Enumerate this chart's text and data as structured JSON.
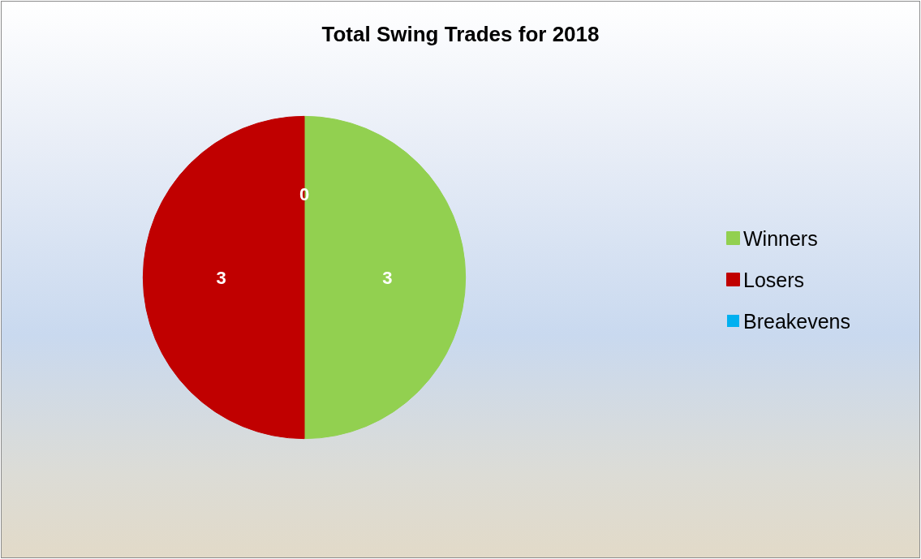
{
  "chart_data": {
    "type": "pie",
    "title": "Total Swing Trades for 2018",
    "categories": [
      "Winners",
      "Losers",
      "Breakevens"
    ],
    "values": [
      3,
      3,
      0
    ],
    "colors": [
      "#92d050",
      "#c00000",
      "#00b0f0"
    ],
    "value_labels": [
      "3",
      "3",
      "0"
    ],
    "legend": "right"
  }
}
